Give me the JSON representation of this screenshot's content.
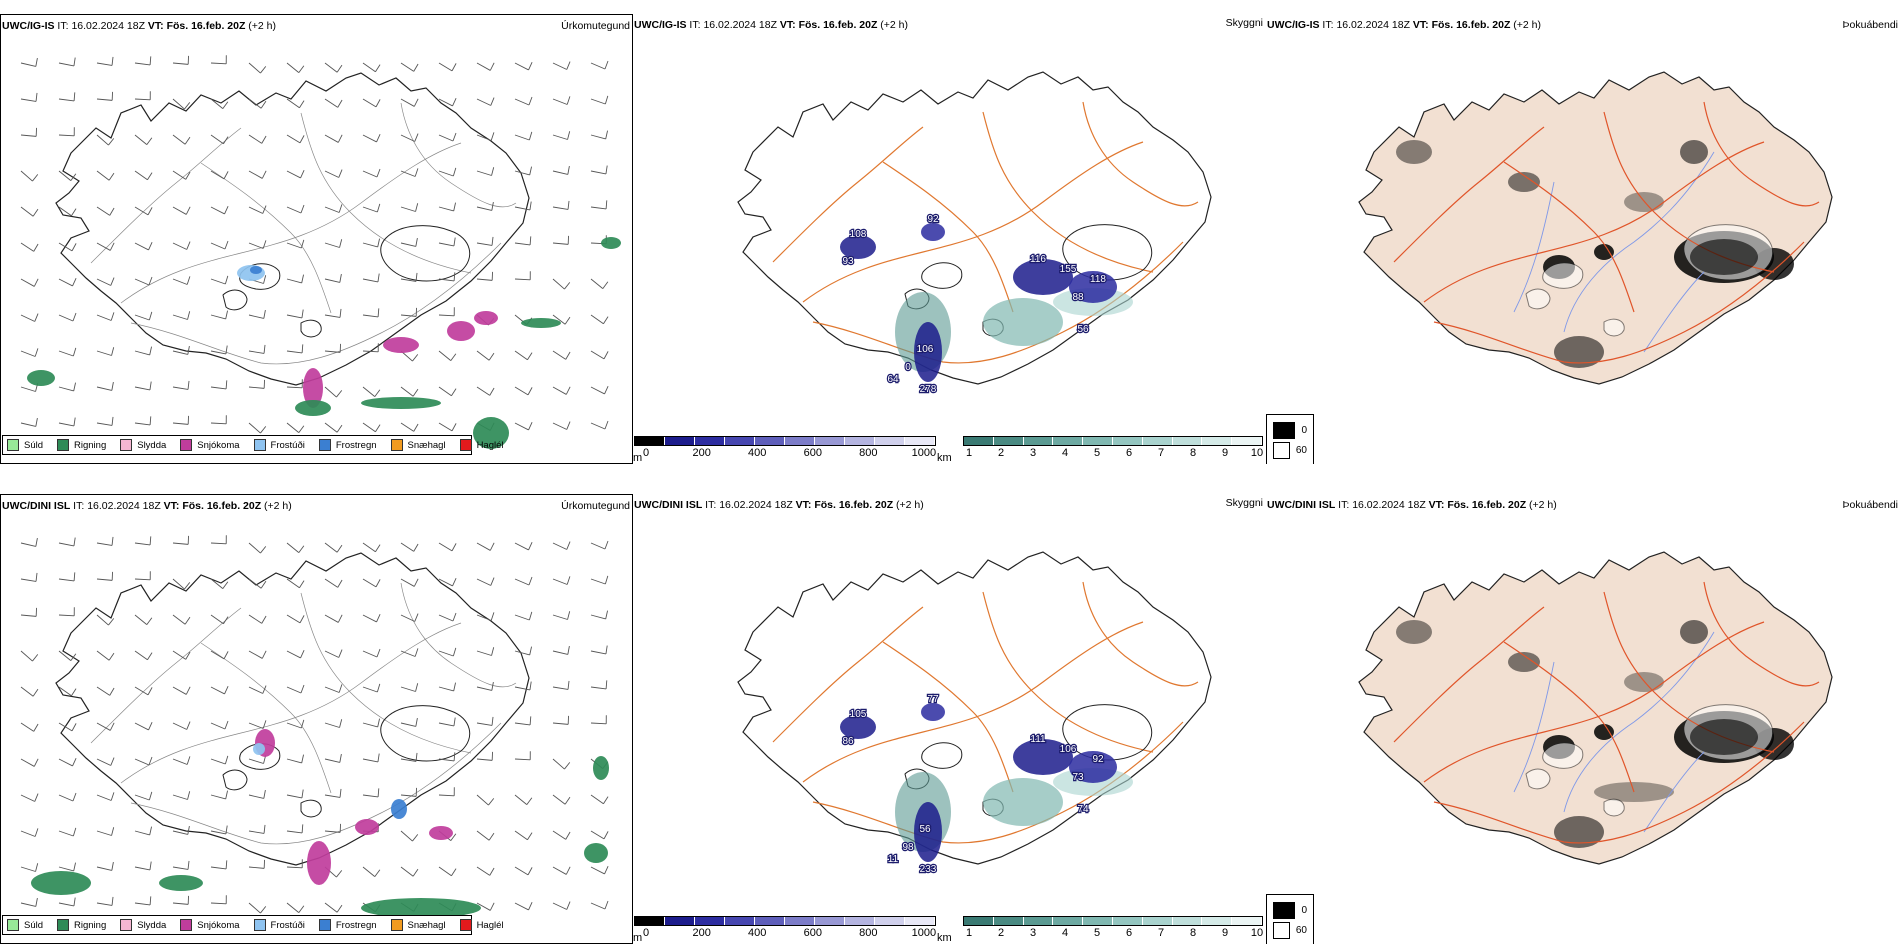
{
  "rows": [
    {
      "model": "UWC/IG-IS",
      "it_label": "IT:",
      "it_value": "16.02.2024 18Z",
      "vt_label": "VT:",
      "vt_value": "Fös. 16.feb. 20Z",
      "lead": "(+2 h)"
    },
    {
      "model": "UWC/DINI ISL",
      "it_label": "IT:",
      "it_value": "16.02.2024 18Z",
      "vt_label": "VT:",
      "vt_value": "Fös. 16.feb. 20Z",
      "lead": "(+2 h)"
    }
  ],
  "panel_titles": {
    "precip": "Úrkomutegund",
    "visibility": "Skyggni",
    "fog": "Þokuábendi"
  },
  "precip_legend": [
    {
      "label": "Súld",
      "color": "#98e898"
    },
    {
      "label": "Rigning",
      "color": "#2e8b57"
    },
    {
      "label": "Slydda",
      "color": "#f4b6d2"
    },
    {
      "label": "Snjókoma",
      "color": "#c03d9c"
    },
    {
      "label": "Frostúði",
      "color": "#8ec3f0"
    },
    {
      "label": "Frostregn",
      "color": "#3b7fd1"
    },
    {
      "label": "Snæhagl",
      "color": "#f29b20"
    },
    {
      "label": "Haglél",
      "color": "#e31a1c"
    }
  ],
  "visibility_m_scale": {
    "unit": "m",
    "ticks": [
      "0",
      "200",
      "400",
      "600",
      "800",
      "1000"
    ],
    "colors": [
      "#000000",
      "#1c1c8c",
      "#2c2ca0",
      "#4646b0",
      "#5e5eba",
      "#7c7cc8",
      "#9898d4",
      "#b4b4e0",
      "#d0d0ec",
      "#e8e8f6"
    ]
  },
  "visibility_km_scale": {
    "unit": "km",
    "ticks": [
      "1",
      "2",
      "3",
      "4",
      "5",
      "6",
      "7",
      "8",
      "9",
      "10"
    ],
    "colors": [
      "#3a7a73",
      "#4a8a82",
      "#5b9a92",
      "#6da9a2",
      "#80b8b1",
      "#94c6c0",
      "#a9d3ce",
      "#bfdfdb",
      "#d5ebe8",
      "#ebf5f4"
    ]
  },
  "fog_legend": [
    {
      "label": "0",
      "color": "#000000"
    },
    {
      "label": "60",
      "color": "#ffffff"
    }
  ],
  "visibility_labels": [
    [
      "108",
      "92",
      "93",
      "116",
      "155",
      "118",
      "88",
      "56",
      "106",
      "0",
      "64",
      "278"
    ],
    [
      "105",
      "77",
      "86",
      "111",
      "106",
      "92",
      "73",
      "74",
      "56",
      "98",
      "11",
      "233"
    ]
  ],
  "colors": {
    "road": "#e07830",
    "glacier_fill": "#ffffff",
    "land_fog": "#f2e0d2",
    "river": "#7f98e8"
  },
  "icons": [
    "wind-barb-icon"
  ]
}
